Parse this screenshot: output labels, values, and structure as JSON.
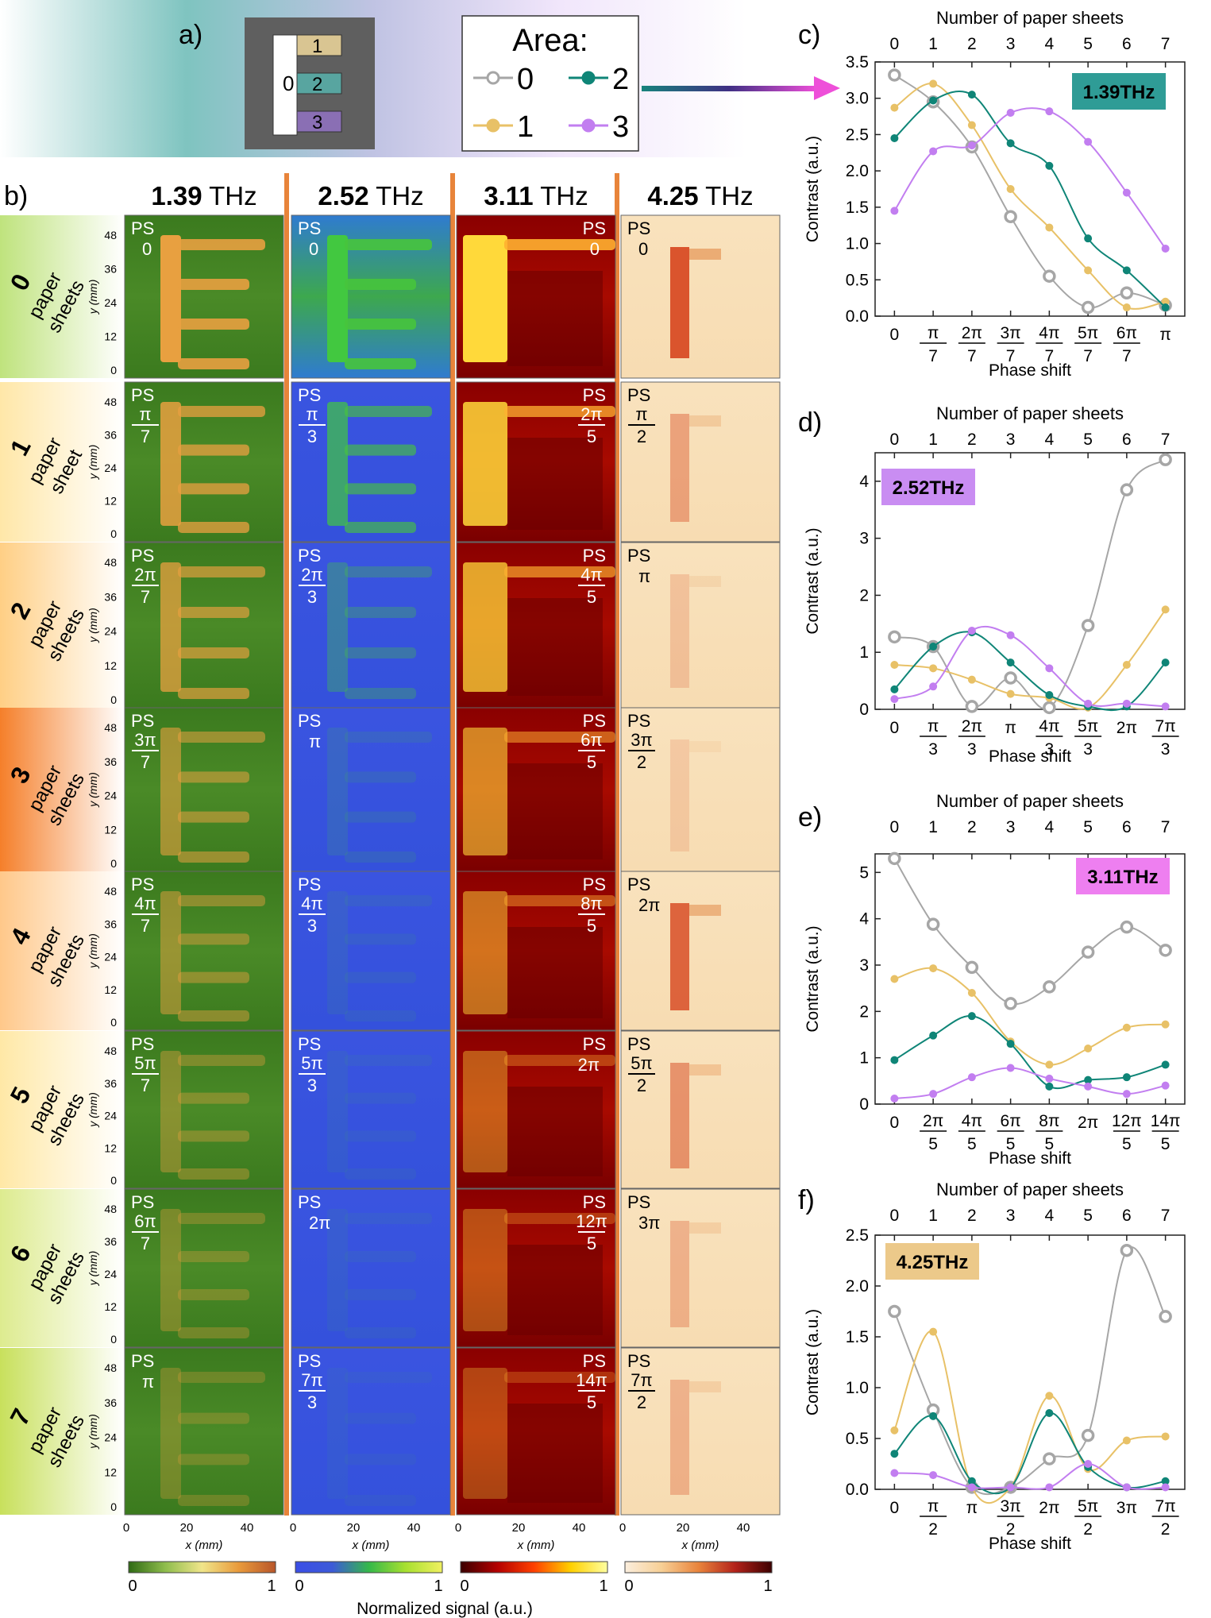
{
  "labels": {
    "a": "a)",
    "b": "b)",
    "c": "c)",
    "d": "d)",
    "e": "e)",
    "f": "f)"
  },
  "schematic": {
    "areas": [
      {
        "label": "0",
        "color": "#ffffff"
      },
      {
        "label": "1",
        "color": "#d9c592"
      },
      {
        "label": "2",
        "color": "#58a5a0"
      },
      {
        "label": "3",
        "color": "#8a6fb4"
      }
    ],
    "frame_color": "#5f5f5f"
  },
  "legend": {
    "title": "Area:",
    "items": [
      {
        "label": "0",
        "color": "#a6a6a6",
        "marker": "hollow-circle"
      },
      {
        "label": "2",
        "color": "#0f8577",
        "marker": "filled-circle"
      },
      {
        "label": "1",
        "color": "#e8c167",
        "marker": "filled-circle"
      },
      {
        "label": "3",
        "color": "#c27ef0",
        "marker": "filled-circle"
      }
    ]
  },
  "images": {
    "freq_headers": [
      {
        "bold": "1.39",
        "unit": " THz"
      },
      {
        "bold": "2.52",
        "unit": " THz"
      },
      {
        "bold": "3.11",
        "unit": " THz"
      },
      {
        "bold": "4.25",
        "unit": " THz"
      }
    ],
    "rows": [
      {
        "num": "0",
        "l1": "paper",
        "l2": "sheets"
      },
      {
        "num": "1",
        "l1": "paper",
        "l2": "sheet"
      },
      {
        "num": "2",
        "l1": "paper",
        "l2": "sheets"
      },
      {
        "num": "3",
        "l1": "paper",
        "l2": "sheets"
      },
      {
        "num": "4",
        "l1": "paper",
        "l2": "sheets"
      },
      {
        "num": "5",
        "l1": "paper",
        "l2": "sheets"
      },
      {
        "num": "6",
        "l1": "paper",
        "l2": "sheets"
      },
      {
        "num": "7",
        "l1": "paper",
        "l2": "sheets"
      }
    ],
    "ps_prefix": "PS",
    "ps": [
      [
        {
          "t": "0"
        },
        {
          "n": "π",
          "d": "7"
        },
        {
          "n": "2π",
          "d": "7"
        },
        {
          "n": "3π",
          "d": "7"
        },
        {
          "n": "4π",
          "d": "7"
        },
        {
          "n": "5π",
          "d": "7"
        },
        {
          "n": "6π",
          "d": "7"
        },
        {
          "t": "π"
        }
      ],
      [
        {
          "t": "0"
        },
        {
          "n": "π",
          "d": "3"
        },
        {
          "n": "2π",
          "d": "3"
        },
        {
          "t": "π"
        },
        {
          "n": "4π",
          "d": "3"
        },
        {
          "n": "5π",
          "d": "3"
        },
        {
          "t": "2π"
        },
        {
          "n": "7π",
          "d": "3"
        }
      ],
      [
        {
          "t": "0"
        },
        {
          "n": "2π",
          "d": "5"
        },
        {
          "n": "4π",
          "d": "5"
        },
        {
          "n": "6π",
          "d": "5"
        },
        {
          "n": "8π",
          "d": "5"
        },
        {
          "t": "2π"
        },
        {
          "n": "12π",
          "d": "5"
        },
        {
          "n": "14π",
          "d": "5"
        }
      ],
      [
        {
          "t": "0"
        },
        {
          "n": "π",
          "d": "2"
        },
        {
          "t": "π"
        },
        {
          "n": "3π",
          "d": "2"
        },
        {
          "t": "2π"
        },
        {
          "n": "5π",
          "d": "2"
        },
        {
          "t": "3π"
        },
        {
          "n": "7π",
          "d": "2"
        }
      ]
    ],
    "y_axis_label": "y (mm)",
    "x_axis_label": "x (mm)",
    "y_ticks": [
      "48",
      "36",
      "24",
      "12",
      "0"
    ],
    "x_ticks": [
      "0",
      "20",
      "40"
    ],
    "colorbar_ticks": [
      [
        "0",
        "1"
      ],
      [
        "0",
        "1"
      ],
      [
        "0",
        "1"
      ],
      [
        "0",
        "1"
      ]
    ],
    "colorbar_label": "Normalized signal (a.u.)",
    "colormaps": [
      [
        "#2f6a14",
        "#8fbd4d",
        "#f0e58a",
        "#e99a3b",
        "#b8562a"
      ],
      [
        "#3b4ee6",
        "#3c5ad8",
        "#35b84a",
        "#a8e030",
        "#f0f060"
      ],
      [
        "#3a0000",
        "#b30000",
        "#ff4000",
        "#ffd000",
        "#ffffa0"
      ],
      [
        "#fbeedd",
        "#f7cf95",
        "#e9843c",
        "#b3221a",
        "#3c0000"
      ]
    ],
    "sample_shapes": [
      "E",
      "E",
      "E",
      "L"
    ]
  },
  "chart_data": [
    {
      "type": "line",
      "panel": "c",
      "badge": "1.39THz",
      "badge_color": "#2f9c96",
      "xlabel": "Phase shift",
      "ylabel": "Contrast (a.u.)",
      "top_xlabel": "Number of paper sheets",
      "x": [
        0,
        1,
        2,
        3,
        4,
        5,
        6,
        7
      ],
      "xtick_labels": [
        {
          "t": "0"
        },
        {
          "n": "π",
          "d": "7"
        },
        {
          "n": "2π",
          "d": "7"
        },
        {
          "n": "3π",
          "d": "7"
        },
        {
          "n": "4π",
          "d": "7"
        },
        {
          "n": "5π",
          "d": "7"
        },
        {
          "n": "6π",
          "d": "7"
        },
        {
          "t": "π"
        }
      ],
      "top_ticks": [
        "0",
        "1",
        "2",
        "3",
        "4",
        "5",
        "6",
        "7"
      ],
      "yticks": [
        "0.0",
        "0.5",
        "1.0",
        "1.5",
        "2.0",
        "2.5",
        "3.0",
        "3.5"
      ],
      "ylim": [
        0,
        3.5
      ],
      "series": [
        {
          "name": "0",
          "color": "#a6a6a6",
          "hollow": true,
          "values": [
            3.32,
            2.95,
            2.33,
            1.37,
            0.55,
            0.12,
            0.32,
            0.15
          ]
        },
        {
          "name": "1",
          "color": "#e8c167",
          "values": [
            2.87,
            3.2,
            2.63,
            1.75,
            1.22,
            0.63,
            0.12,
            0.2
          ]
        },
        {
          "name": "2",
          "color": "#0f8577",
          "values": [
            2.45,
            2.97,
            3.05,
            2.38,
            2.07,
            1.07,
            0.63,
            0.12
          ]
        },
        {
          "name": "3",
          "color": "#c27ef0",
          "values": [
            1.45,
            2.27,
            2.35,
            2.8,
            2.82,
            2.4,
            1.7,
            0.93
          ]
        }
      ]
    },
    {
      "type": "line",
      "panel": "d",
      "badge": "2.52THz",
      "badge_color": "#c98df2",
      "xlabel": "Phase shift",
      "ylabel": "Contrast (a.u.)",
      "top_xlabel": "Number of paper sheets",
      "x": [
        0,
        1,
        2,
        3,
        4,
        5,
        6,
        7
      ],
      "xtick_labels": [
        {
          "t": "0"
        },
        {
          "n": "π",
          "d": "3"
        },
        {
          "n": "2π",
          "d": "3"
        },
        {
          "t": "π"
        },
        {
          "n": "4π",
          "d": "3"
        },
        {
          "n": "5π",
          "d": "3"
        },
        {
          "t": "2π"
        },
        {
          "n": "7π",
          "d": "3"
        }
      ],
      "top_ticks": [
        "0",
        "1",
        "2",
        "3",
        "4",
        "5",
        "6",
        "7"
      ],
      "yticks": [
        "0",
        "1",
        "2",
        "3",
        "4"
      ],
      "ylim": [
        0,
        4.5
      ],
      "series": [
        {
          "name": "0",
          "color": "#a6a6a6",
          "hollow": true,
          "values": [
            1.27,
            1.1,
            0.05,
            0.55,
            0.03,
            1.47,
            3.85,
            4.38
          ]
        },
        {
          "name": "1",
          "color": "#e8c167",
          "values": [
            0.78,
            0.72,
            0.52,
            0.27,
            0.2,
            0.03,
            0.78,
            1.75
          ]
        },
        {
          "name": "2",
          "color": "#0f8577",
          "values": [
            0.35,
            1.1,
            1.35,
            0.82,
            0.25,
            0.05,
            0.05,
            0.82
          ]
        },
        {
          "name": "3",
          "color": "#c27ef0",
          "values": [
            0.18,
            0.4,
            1.38,
            1.3,
            0.72,
            0.1,
            0.1,
            0.05
          ]
        }
      ]
    },
    {
      "type": "line",
      "panel": "e",
      "badge": "3.11THz",
      "badge_color": "#ee7ff0",
      "xlabel": "Phase shift",
      "ylabel": "Contrast (a.u.)",
      "top_xlabel": "Number of paper sheets",
      "x": [
        0,
        1,
        2,
        3,
        4,
        5,
        6,
        7
      ],
      "xtick_labels": [
        {
          "t": "0"
        },
        {
          "n": "2π",
          "d": "5"
        },
        {
          "n": "4π",
          "d": "5"
        },
        {
          "n": "6π",
          "d": "5"
        },
        {
          "n": "8π",
          "d": "5"
        },
        {
          "t": "2π"
        },
        {
          "n": "12π",
          "d": "5"
        },
        {
          "n": "14π",
          "d": "5"
        }
      ],
      "top_ticks": [
        "0",
        "1",
        "2",
        "3",
        "4",
        "5",
        "6",
        "7"
      ],
      "yticks": [
        "0",
        "1",
        "2",
        "3",
        "4",
        "5"
      ],
      "ylim": [
        0,
        5.4
      ],
      "series": [
        {
          "name": "0",
          "color": "#a6a6a6",
          "hollow": true,
          "values": [
            5.3,
            3.88,
            2.95,
            2.17,
            2.53,
            3.28,
            3.82,
            3.32
          ]
        },
        {
          "name": "1",
          "color": "#e8c167",
          "values": [
            2.7,
            2.93,
            2.4,
            1.35,
            0.85,
            1.2,
            1.65,
            1.72
          ]
        },
        {
          "name": "2",
          "color": "#0f8577",
          "values": [
            0.95,
            1.48,
            1.9,
            1.3,
            0.38,
            0.52,
            0.58,
            0.85
          ]
        },
        {
          "name": "3",
          "color": "#c27ef0",
          "values": [
            0.12,
            0.22,
            0.58,
            0.78,
            0.55,
            0.38,
            0.22,
            0.4
          ]
        }
      ]
    },
    {
      "type": "line",
      "panel": "f",
      "badge": "4.25THz",
      "badge_color": "#ecc98a",
      "xlabel": "Phase shift",
      "ylabel": "Contrast (a.u.)",
      "top_xlabel": "Number of paper sheets",
      "x": [
        0,
        1,
        2,
        3,
        4,
        5,
        6,
        7
      ],
      "xtick_labels": [
        {
          "t": "0"
        },
        {
          "n": "π",
          "d": "2"
        },
        {
          "t": "π"
        },
        {
          "n": "3π",
          "d": "2"
        },
        {
          "t": "2π"
        },
        {
          "n": "5π",
          "d": "2"
        },
        {
          "t": "3π"
        },
        {
          "n": "7π",
          "d": "2"
        }
      ],
      "top_ticks": [
        "0",
        "1",
        "2",
        "3",
        "4",
        "5",
        "6",
        "7"
      ],
      "yticks": [
        "0.0",
        "0.5",
        "1.0",
        "1.5",
        "2.0",
        "2.5"
      ],
      "ylim": [
        0,
        2.5
      ],
      "series": [
        {
          "name": "0",
          "color": "#a6a6a6",
          "hollow": true,
          "values": [
            1.75,
            0.78,
            0.02,
            0.02,
            0.3,
            0.53,
            2.35,
            1.7
          ]
        },
        {
          "name": "1",
          "color": "#e8c167",
          "values": [
            0.58,
            1.55,
            0.02,
            0.02,
            0.92,
            0.2,
            0.48,
            0.52
          ]
        },
        {
          "name": "2",
          "color": "#0f8577",
          "values": [
            0.35,
            0.72,
            0.08,
            0.02,
            0.75,
            0.22,
            0.02,
            0.08
          ]
        },
        {
          "name": "3",
          "color": "#c27ef0",
          "values": [
            0.16,
            0.14,
            0.02,
            0.02,
            0.02,
            0.25,
            0.02,
            0.02
          ]
        }
      ]
    }
  ]
}
